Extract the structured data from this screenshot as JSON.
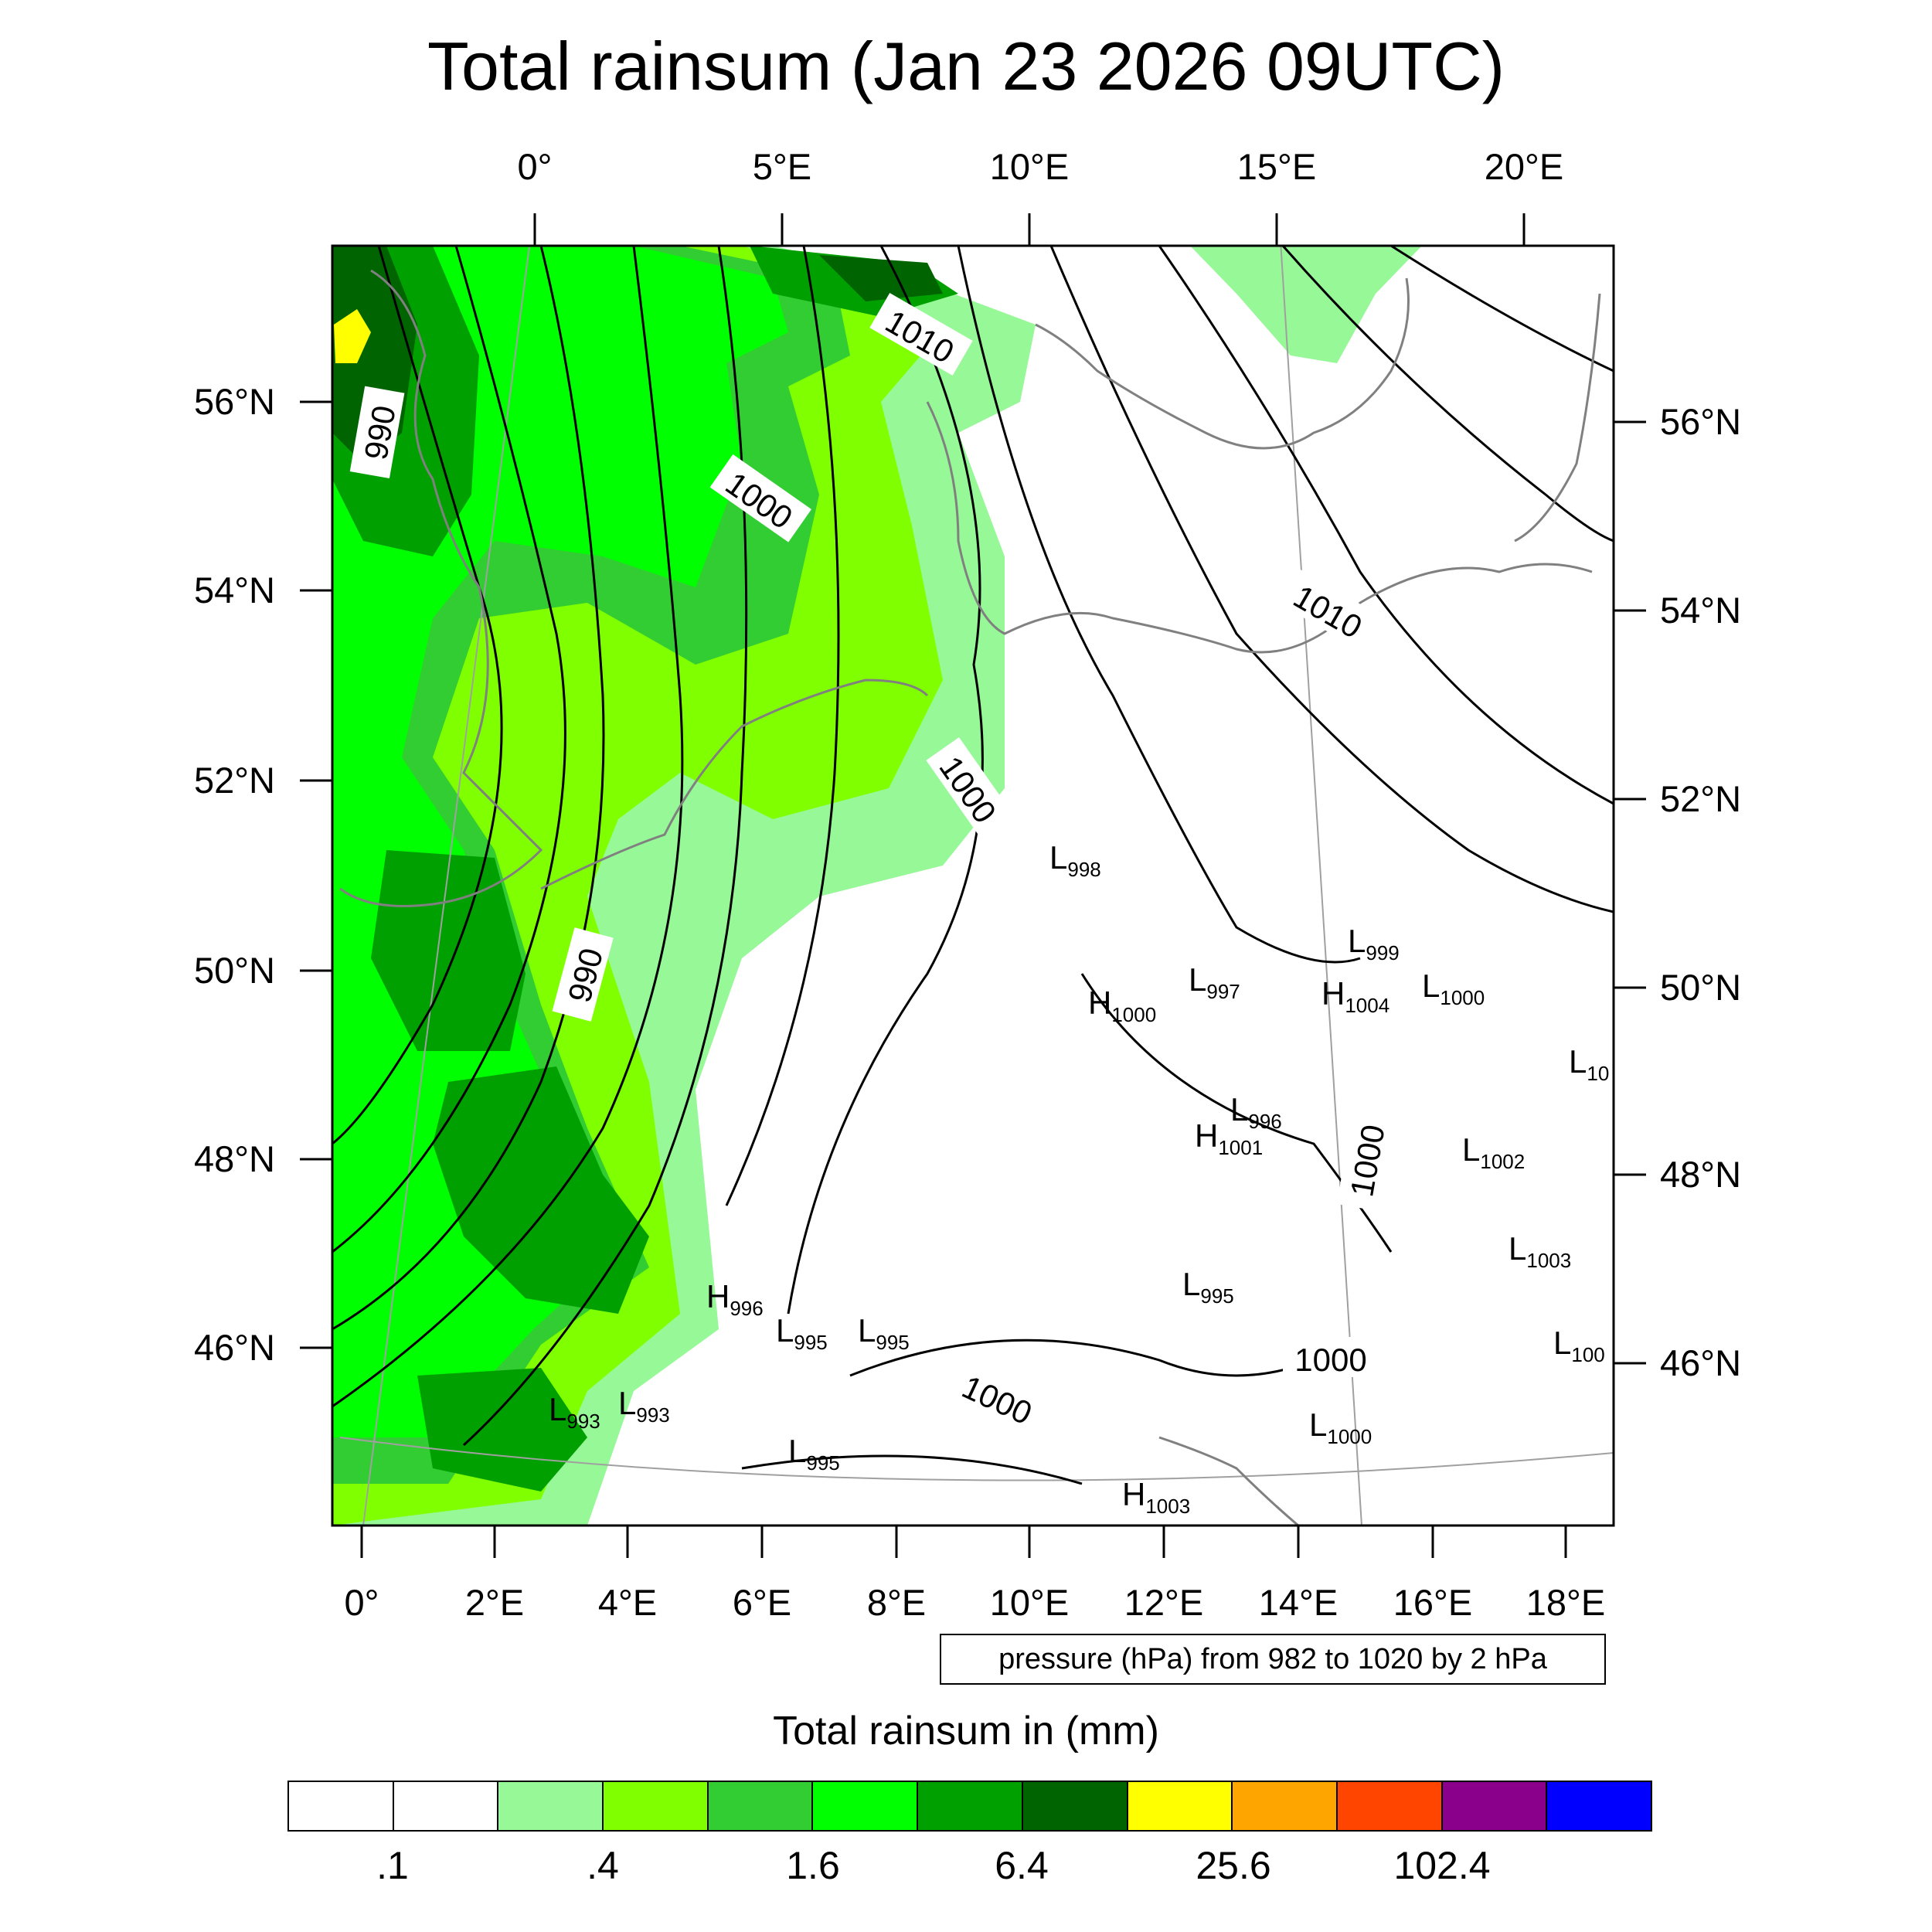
{
  "title": "Total rainsum (Jan 23 2026 09UTC)",
  "axes": {
    "top": [
      "0°",
      "5°E",
      "10°E",
      "15°E",
      "20°E"
    ],
    "bottom": [
      "0°",
      "2°E",
      "4°E",
      "6°E",
      "8°E",
      "10°E",
      "12°E",
      "14°E",
      "16°E",
      "18°E"
    ],
    "left": [
      "56°N",
      "54°N",
      "52°N",
      "50°N",
      "48°N",
      "46°N"
    ],
    "right": [
      "56°N",
      "54°N",
      "52°N",
      "50°N",
      "48°N",
      "46°N"
    ]
  },
  "contour_labels": [
    "1010",
    "990",
    "1000",
    "1010",
    "1000",
    "990",
    "1000",
    "1000",
    "1000"
  ],
  "pressure_centers": [
    {
      "kind": "L",
      "value": "998"
    },
    {
      "kind": "L",
      "value": "999"
    },
    {
      "kind": "H",
      "value": "1000"
    },
    {
      "kind": "L",
      "value": "997"
    },
    {
      "kind": "H",
      "value": "1004"
    },
    {
      "kind": "L",
      "value": "1000"
    },
    {
      "kind": "L",
      "value": "10"
    },
    {
      "kind": "L",
      "value": "996"
    },
    {
      "kind": "H",
      "value": "1001"
    },
    {
      "kind": "L",
      "value": "1002"
    },
    {
      "kind": "L",
      "value": "1003"
    },
    {
      "kind": "H",
      "value": "996"
    },
    {
      "kind": "L",
      "value": "995"
    },
    {
      "kind": "L",
      "value": "995"
    },
    {
      "kind": "L",
      "value": "995"
    },
    {
      "kind": "L",
      "value": "100"
    },
    {
      "kind": "L",
      "value": "993"
    },
    {
      "kind": "L",
      "value": "993"
    },
    {
      "kind": "L",
      "value": "995"
    },
    {
      "kind": "L",
      "value": "1000"
    },
    {
      "kind": "H",
      "value": "1003"
    }
  ],
  "info_box": "pressure (hPa) from 982 to 1020 by 2 hPa",
  "colorbar": {
    "title": "Total rainsum in (mm)",
    "colors": [
      "#ffffff",
      "#ffffff",
      "#96f896",
      "#80ff00",
      "#32cd32",
      "#00ff00",
      "#00a000",
      "#006400",
      "#ffff00",
      "#ffa500",
      "#ff4500",
      "#8b008b",
      "#0000ff"
    ],
    "labels": [
      ".1",
      ".4",
      "1.6",
      "6.4",
      "25.6",
      "102.4"
    ]
  },
  "colors": {
    "isobar": "#000000",
    "coastline": "#808080",
    "graticule": "#a0a0a0"
  }
}
